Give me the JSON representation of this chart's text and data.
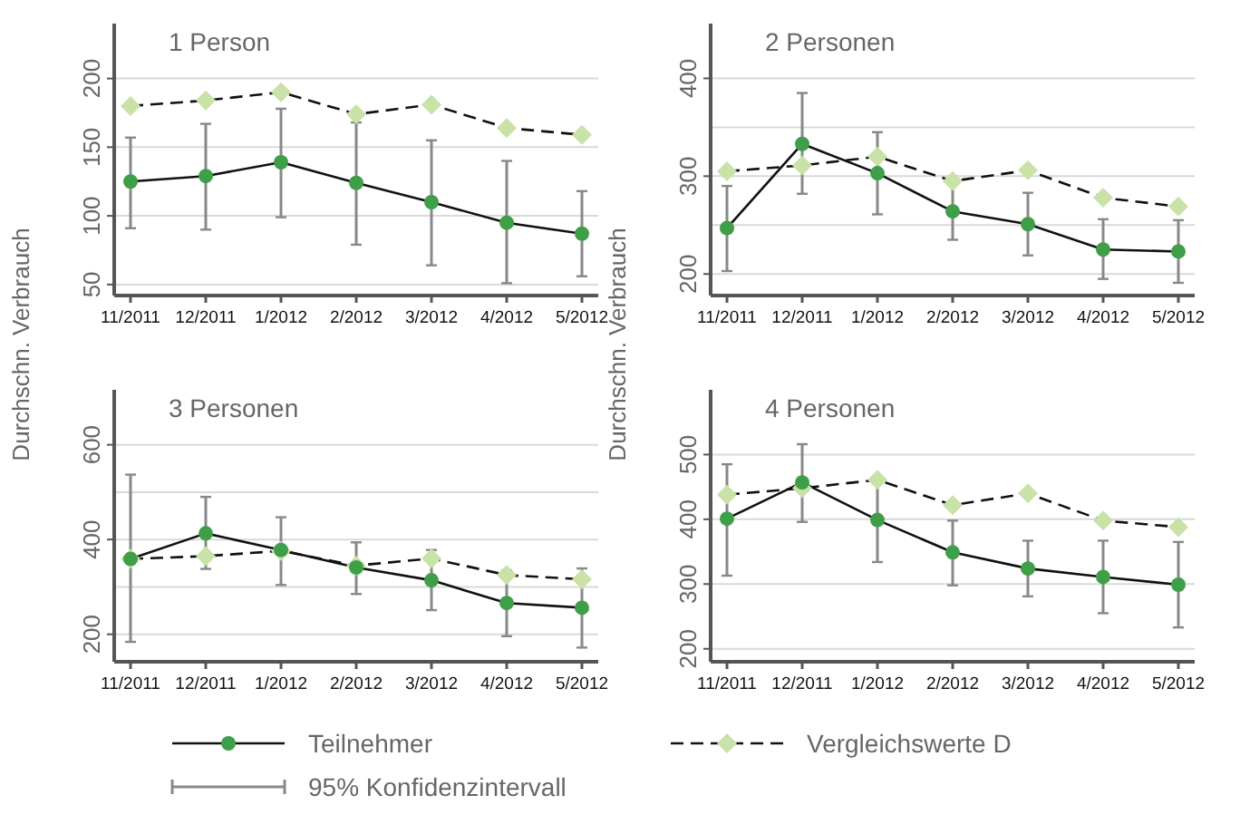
{
  "chart_data": [
    {
      "type": "line",
      "title": "1 Person",
      "ylabel": "Durchschn. Verbrauch",
      "categories": [
        "11/2011",
        "12/2011",
        "1/2012",
        "2/2012",
        "3/2012",
        "4/2012",
        "5/2012"
      ],
      "ylim": [
        42,
        240
      ],
      "yticks": [
        50,
        100,
        150,
        200
      ],
      "grid": "y",
      "series": [
        {
          "color": "#3f9e48",
          "marker": "circle",
          "line_style": "solid",
          "values": [
            125,
            129,
            139,
            124,
            110,
            95,
            87
          ],
          "errors": [
            [
              91,
              157
            ],
            [
              90,
              167
            ],
            [
              99,
              178
            ],
            [
              79,
              168
            ],
            [
              64,
              155
            ],
            [
              51,
              140
            ],
            [
              56,
              118
            ]
          ]
        },
        {
          "color": "#c8e2a8",
          "marker": "diamond",
          "line_style": "dashed",
          "values": [
            180,
            184,
            190,
            174,
            181,
            164,
            159
          ]
        }
      ]
    },
    {
      "type": "line",
      "title": "2 Personen",
      "ylabel": "Durchschn. Verbrauch",
      "categories": [
        "11/2011",
        "12/2011",
        "1/2012",
        "2/2012",
        "3/2012",
        "4/2012",
        "5/2012"
      ],
      "ylim": [
        178,
        456
      ],
      "yticks": [
        200,
        {
          "value": 250,
          "label": null
        },
        300,
        {
          "value": 350,
          "label": null
        },
        400
      ],
      "grid": "y",
      "series": [
        {
          "color": "#3f9e48",
          "marker": "circle",
          "line_style": "solid",
          "values": [
            247,
            333,
            303,
            264,
            251,
            225,
            223
          ],
          "errors": [
            [
              203,
              290
            ],
            [
              282,
              385
            ],
            [
              261,
              345
            ],
            [
              235,
              298
            ],
            [
              219,
              283
            ],
            [
              195,
              256
            ],
            [
              191,
              255
            ]
          ]
        },
        {
          "color": "#c8e2a8",
          "marker": "diamond",
          "line_style": "dashed",
          "values": [
            305,
            311,
            320,
            295,
            306,
            278,
            269
          ]
        }
      ]
    },
    {
      "type": "line",
      "title": "3 Personen",
      "categories": [
        "11/2011",
        "12/2011",
        "1/2012",
        "2/2012",
        "3/2012",
        "4/2012",
        "5/2012"
      ],
      "ylim": [
        142,
        716
      ],
      "yticks": [
        200,
        {
          "value": 300,
          "label": null
        },
        400,
        {
          "value": 500,
          "label": null
        },
        600
      ],
      "grid": "y",
      "series": [
        {
          "color": "#3f9e48",
          "marker": "circle",
          "line_style": "solid",
          "values": [
            359,
            413,
            378,
            341,
            314,
            266,
            256
          ],
          "errors": [
            [
              184,
              537
            ],
            [
              338,
              490
            ],
            [
              304,
              447
            ],
            [
              285,
              394
            ],
            [
              251,
              378
            ],
            [
              196,
              335
            ],
            [
              172,
              339
            ]
          ]
        },
        {
          "color": "#c8e2a8",
          "marker": "diamond",
          "line_style": "dashed",
          "values": [
            359,
            365,
            376,
            345,
            360,
            325,
            316
          ]
        }
      ]
    },
    {
      "type": "line",
      "title": "4 Personen",
      "categories": [
        "11/2011",
        "12/2011",
        "1/2012",
        "2/2012",
        "3/2012",
        "4/2012",
        "5/2012"
      ],
      "ylim": [
        180,
        600
      ],
      "yticks": [
        200,
        300,
        400,
        500
      ],
      "grid": "y",
      "legend": "bottom",
      "annotations": [
        "95% Konfidenzintervall"
      ],
      "series": [
        {
          "name": "Teilnehmer",
          "color": "#3f9e48",
          "marker": "circle",
          "line_style": "solid",
          "values": [
            401,
            457,
            399,
            349,
            324,
            311,
            299
          ],
          "errors": [
            [
              313,
              485
            ],
            [
              396,
              516
            ],
            [
              334,
              462
            ],
            [
              298,
              398
            ],
            [
              281,
              367
            ],
            [
              255,
              367
            ],
            [
              233,
              365
            ]
          ]
        },
        {
          "name": "Vergleichswerte D",
          "color": "#c8e2a8",
          "marker": "diamond",
          "line_style": "dashed",
          "values": [
            438,
            448,
            461,
            422,
            440,
            398,
            388
          ]
        }
      ]
    }
  ]
}
